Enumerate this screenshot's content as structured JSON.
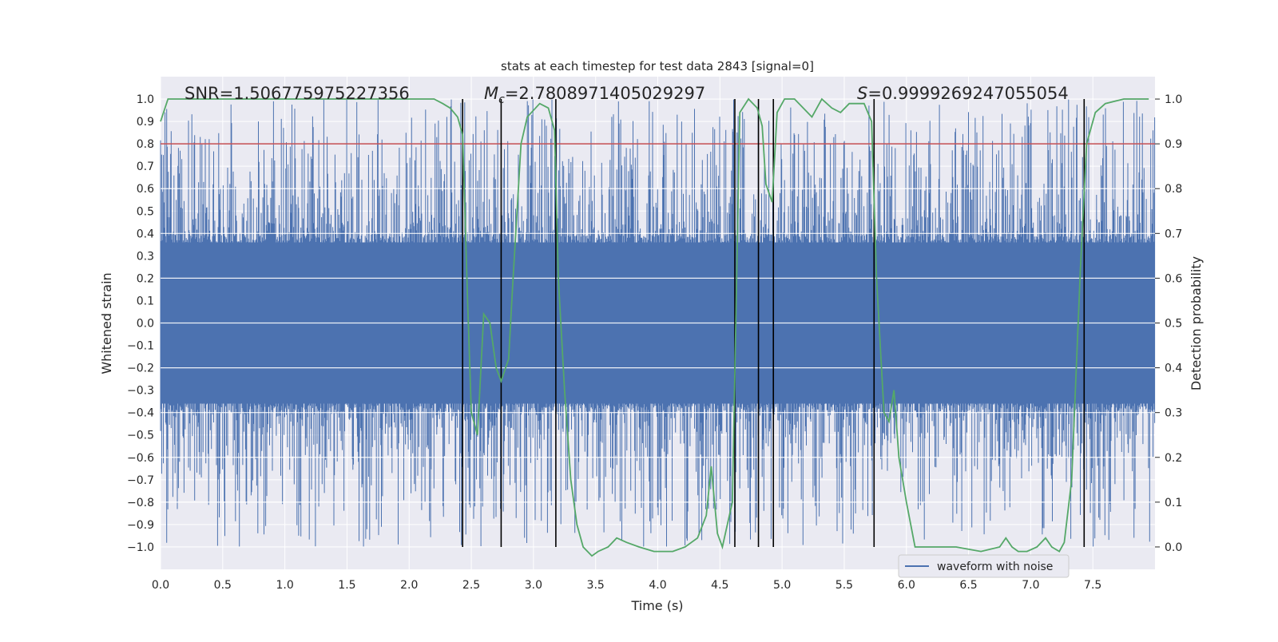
{
  "chart_data": {
    "type": "line",
    "title": "stats at each timestep for test data 2843 [signal=0]",
    "xlabel": "Time (s)",
    "ylabel": "Whitened strain",
    "y2label": "Detection probability",
    "xlim": [
      0.0,
      8.0
    ],
    "ylim": [
      -1.1,
      1.1
    ],
    "y2lim": [
      -0.05,
      1.05
    ],
    "xticks": [
      "0.0",
      "0.5",
      "1.0",
      "1.5",
      "2.0",
      "2.5",
      "3.0",
      "3.5",
      "4.0",
      "4.5",
      "5.0",
      "5.5",
      "6.0",
      "6.5",
      "7.0",
      "7.5"
    ],
    "xtick_values": [
      0,
      0.5,
      1,
      1.5,
      2,
      2.5,
      3,
      3.5,
      4,
      4.5,
      5,
      5.5,
      6,
      6.5,
      7,
      7.5
    ],
    "yticks": [
      "1.0",
      "0.9",
      "0.8",
      "0.7",
      "0.6",
      "0.5",
      "0.4",
      "0.3",
      "0.2",
      "0.1",
      "0.0",
      "−0.1",
      "−0.2",
      "−0.3",
      "−0.4",
      "−0.5",
      "−0.6",
      "−0.7",
      "−0.8",
      "−0.9",
      "−1.0"
    ],
    "ytick_values": [
      1.0,
      0.9,
      0.8,
      0.7,
      0.6,
      0.5,
      0.4,
      0.3,
      0.2,
      0.1,
      0.0,
      -0.1,
      -0.2,
      -0.3,
      -0.4,
      -0.5,
      -0.6,
      -0.7,
      -0.8,
      -0.9,
      -1.0
    ],
    "y2ticks": [
      "1.0",
      "0.9",
      "0.8",
      "0.7",
      "0.6",
      "0.5",
      "0.4",
      "0.3",
      "0.2",
      "0.1",
      "0.0"
    ],
    "y2tick_values": [
      1.0,
      0.9,
      0.8,
      0.7,
      0.6,
      0.5,
      0.4,
      0.3,
      0.2,
      0.1,
      0.0
    ],
    "annotations": {
      "snr": "SNR=1.506775975227356",
      "mc_symbol": "M",
      "mc_sub": "c",
      "mc_value": "=2.7808971405029297",
      "s_symbol": "S",
      "s_value": "=0.9999269247055054"
    },
    "threshold": {
      "value": 0.9,
      "axis": "y2",
      "color": "#c44e52"
    },
    "vertical_lines": [
      2.43,
      2.74,
      3.18,
      4.62,
      4.81,
      4.93,
      5.74,
      7.43
    ],
    "legend": {
      "label": "waveform with noise",
      "position": "lower-right"
    },
    "series": [
      {
        "name": "waveform with noise",
        "axis": "y",
        "color": "#4c72b0",
        "style": "dense noise, core amplitude approx 0.35, peaks approx +/-1.0",
        "core_amplitude": 0.36,
        "peak_amplitude": 1.0
      },
      {
        "name": "detection probability",
        "axis": "y2",
        "color": "#55a868",
        "x": [
          0.0,
          0.06,
          0.2,
          0.5,
          1.0,
          1.5,
          2.0,
          2.2,
          2.27,
          2.33,
          2.39,
          2.43,
          2.47,
          2.5,
          2.55,
          2.6,
          2.65,
          2.7,
          2.74,
          2.8,
          2.83,
          2.9,
          2.95,
          3.05,
          3.12,
          3.17,
          3.2,
          3.25,
          3.3,
          3.35,
          3.4,
          3.47,
          3.52,
          3.6,
          3.67,
          3.75,
          3.85,
          3.97,
          4.12,
          4.22,
          4.32,
          4.39,
          4.43,
          4.48,
          4.52,
          4.56,
          4.6,
          4.66,
          4.73,
          4.8,
          4.84,
          4.87,
          4.92,
          4.96,
          5.02,
          5.1,
          5.17,
          5.24,
          5.32,
          5.4,
          5.47,
          5.54,
          5.6,
          5.66,
          5.72,
          5.76,
          5.82,
          5.86,
          5.9,
          5.94,
          6.0,
          6.07,
          6.2,
          6.4,
          6.6,
          6.75,
          6.8,
          6.85,
          6.9,
          6.97,
          7.05,
          7.12,
          7.17,
          7.23,
          7.27,
          7.33,
          7.4,
          7.45,
          7.52,
          7.6,
          7.75,
          7.95
        ],
        "y": [
          0.95,
          1.0,
          1.0,
          1.0,
          1.0,
          1.0,
          1.0,
          1.0,
          0.99,
          0.98,
          0.96,
          0.92,
          0.55,
          0.3,
          0.25,
          0.52,
          0.5,
          0.4,
          0.37,
          0.42,
          0.57,
          0.9,
          0.96,
          0.99,
          0.98,
          0.93,
          0.6,
          0.35,
          0.15,
          0.05,
          0.0,
          -0.02,
          -0.01,
          0.0,
          0.02,
          0.01,
          0.0,
          -0.01,
          -0.01,
          0.0,
          0.02,
          0.07,
          0.18,
          0.03,
          0.0,
          0.05,
          0.1,
          0.97,
          1.0,
          0.98,
          0.94,
          0.81,
          0.77,
          0.97,
          1.0,
          1.0,
          0.98,
          0.96,
          1.0,
          0.98,
          0.97,
          0.99,
          0.99,
          0.99,
          0.95,
          0.6,
          0.3,
          0.28,
          0.35,
          0.2,
          0.1,
          0.0,
          0.0,
          0.0,
          -0.01,
          0.0,
          0.02,
          0.0,
          -0.01,
          -0.01,
          0.0,
          0.02,
          0.0,
          -0.01,
          0.01,
          0.15,
          0.62,
          0.9,
          0.97,
          0.99,
          1.0,
          1.0
        ]
      }
    ]
  }
}
